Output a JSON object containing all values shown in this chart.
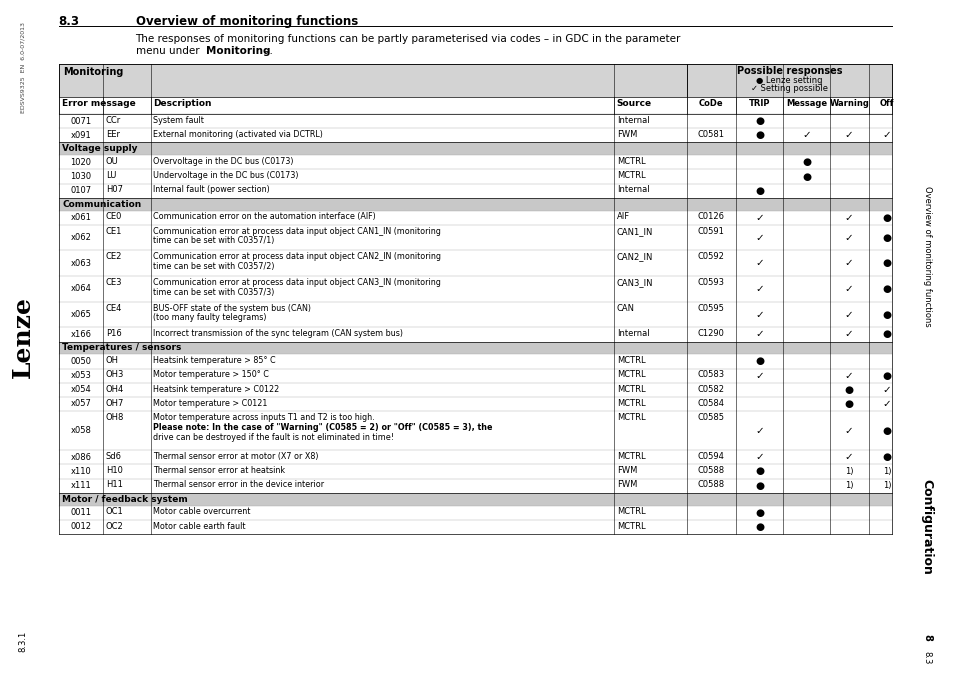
{
  "page_title": "8.3",
  "page_title2": "Overview of monitoring functions",
  "intro_text1": "The responses of monitoring functions can be partly parameterised via codes – in GDC in the parameter",
  "intro_text2": "menu under ",
  "intro_text2b": "Monitoring",
  "intro_text2c": " –.",
  "side_text_left_top": "EDSVS9325  EN  6.0-07/2013",
  "side_text_left_mid": "Lenze",
  "side_text_left_bot": "8.3.1",
  "side_text_right_top": "Overview of monitoring functions",
  "side_text_right_mid": "Configuration",
  "side_text_right_bot1": "8",
  "side_text_right_bot2": "8.3",
  "possible_responses_label": "Possible responses",
  "lenze_setting_label": "● Lenze setting",
  "setting_possible_label": "✓ Setting possible",
  "col_headers": [
    "Error message",
    "Description",
    "Source",
    "CoDe",
    "TRIP",
    "Message",
    "Warning",
    "Off"
  ],
  "section_groups": [
    {
      "label": "",
      "rows": [
        {
          "num": "0071",
          "code": "CCr",
          "desc": "System fault",
          "source": "Internal",
          "CoDe": "",
          "TRIP": "●",
          "Message": "",
          "Warning": "",
          "Off": ""
        },
        {
          "num": "x091",
          "code": "EEr",
          "desc": "External monitoring (activated via DCTRL)",
          "source": "FWM",
          "CoDe": "C0581",
          "TRIP": "●",
          "Message": "✓",
          "Warning": "✓",
          "Off": "✓"
        }
      ]
    },
    {
      "label": "Voltage supply",
      "rows": [
        {
          "num": "1020",
          "code": "OU",
          "desc": "Overvoltage in the DC bus (C0173)",
          "source": "MCTRL",
          "CoDe": "",
          "TRIP": "",
          "Message": "●",
          "Warning": "",
          "Off": ""
        },
        {
          "num": "1030",
          "code": "LU",
          "desc": "Undervoltage in the DC bus (C0173)",
          "source": "MCTRL",
          "CoDe": "",
          "TRIP": "",
          "Message": "●",
          "Warning": "",
          "Off": ""
        },
        {
          "num": "0107",
          "code": "H07",
          "desc": "Internal fault (power section)",
          "source": "Internal",
          "CoDe": "",
          "TRIP": "●",
          "Message": "",
          "Warning": "",
          "Off": ""
        }
      ]
    },
    {
      "label": "Communication",
      "rows": [
        {
          "num": "x061",
          "code": "CE0",
          "desc": "Communication error on the automation interface (AIF)",
          "source": "AIF",
          "CoDe": "C0126",
          "TRIP": "✓",
          "Message": "",
          "Warning": "✓",
          "Off": "●"
        },
        {
          "num": "x062",
          "code": "CE1",
          "desc": "Communication error at process data input object CAN1_IN (monitoring\ntime can be set with C0357/1)",
          "source": "CAN1_IN",
          "CoDe": "C0591",
          "TRIP": "✓",
          "Message": "",
          "Warning": "✓",
          "Off": "●"
        },
        {
          "num": "x063",
          "code": "CE2",
          "desc": "Communication error at process data input object CAN2_IN (monitoring\ntime can be set with C0357/2)",
          "source": "CAN2_IN",
          "CoDe": "C0592",
          "TRIP": "✓",
          "Message": "",
          "Warning": "✓",
          "Off": "●"
        },
        {
          "num": "x064",
          "code": "CE3",
          "desc": "Communication error at process data input object CAN3_IN (monitoring\ntime can be set with C0357/3)",
          "source": "CAN3_IN",
          "CoDe": "C0593",
          "TRIP": "✓",
          "Message": "",
          "Warning": "✓",
          "Off": "●"
        },
        {
          "num": "x065",
          "code": "CE4",
          "desc": "BUS-OFF state of the system bus (CAN)\n(too many faulty telegrams)",
          "source": "CAN",
          "CoDe": "C0595",
          "TRIP": "✓",
          "Message": "",
          "Warning": "✓",
          "Off": "●"
        },
        {
          "num": "x166",
          "code": "P16",
          "desc": "Incorrect transmission of the sync telegram (CAN system bus)",
          "source": "Internal",
          "CoDe": "C1290",
          "TRIP": "✓",
          "Message": "",
          "Warning": "✓",
          "Off": "●"
        }
      ]
    },
    {
      "label": "Temperatures / sensors",
      "rows": [
        {
          "num": "0050",
          "code": "OH",
          "desc": "Heatsink temperature > 85° C",
          "source": "MCTRL",
          "CoDe": "",
          "TRIP": "●",
          "Message": "",
          "Warning": "",
          "Off": ""
        },
        {
          "num": "x053",
          "code": "OH3",
          "desc": "Motor temperature > 150° C",
          "source": "MCTRL",
          "CoDe": "C0583",
          "TRIP": "✓",
          "Message": "",
          "Warning": "✓",
          "Off": "●"
        },
        {
          "num": "x054",
          "code": "OH4",
          "desc": "Heatsink temperature > C0122",
          "source": "MCTRL",
          "CoDe": "C0582",
          "TRIP": "",
          "Message": "",
          "Warning": "●",
          "Off": "✓"
        },
        {
          "num": "x057",
          "code": "OH7",
          "desc": "Motor temperature > C0121",
          "source": "MCTRL",
          "CoDe": "C0584",
          "TRIP": "",
          "Message": "",
          "Warning": "●",
          "Off": "✓"
        },
        {
          "num": "x058",
          "code": "OH8",
          "desc": "Motor temperature across inputs T1 and T2 is too high.\nPlease note: In the case of \"Warning\" (C0585 = 2) or \"Off\" (C0585 = 3), the\ndrive can be destroyed if the fault is not eliminated in time!",
          "source": "MCTRL",
          "CoDe": "C0585",
          "TRIP": "✓",
          "Message": "",
          "Warning": "✓",
          "Off": "●"
        },
        {
          "num": "x086",
          "code": "Sd6",
          "desc": "Thermal sensor error at motor (X7 or X8)",
          "source": "MCTRL",
          "CoDe": "C0594",
          "TRIP": "✓",
          "Message": "",
          "Warning": "✓",
          "Off": "●"
        },
        {
          "num": "x110",
          "code": "H10",
          "desc": "Thermal sensor error at heatsink",
          "source": "FWM",
          "CoDe": "C0588",
          "TRIP": "●",
          "Message": "",
          "Warning": "1)",
          "Off": "1)"
        },
        {
          "num": "x111",
          "code": "H11",
          "desc": "Thermal sensor error in the device interior",
          "source": "FWM",
          "CoDe": "C0588",
          "TRIP": "●",
          "Message": "",
          "Warning": "1)",
          "Off": "1)"
        }
      ]
    },
    {
      "label": "Motor / feedback system",
      "rows": [
        {
          "num": "0011",
          "code": "OC1",
          "desc": "Motor cable overcurrent",
          "source": "MCTRL",
          "CoDe": "",
          "TRIP": "●",
          "Message": "",
          "Warning": "",
          "Off": ""
        },
        {
          "num": "0012",
          "code": "OC2",
          "desc": "Motor cable earth fault",
          "source": "MCTRL",
          "CoDe": "",
          "TRIP": "●",
          "Message": "",
          "Warning": "",
          "Off": ""
        }
      ]
    }
  ],
  "bg_color": "#ffffff",
  "header_bg": "#d3d3d3",
  "section_bg": "#c8c8c8",
  "right_sidebar_bg": "#e0e0e0"
}
